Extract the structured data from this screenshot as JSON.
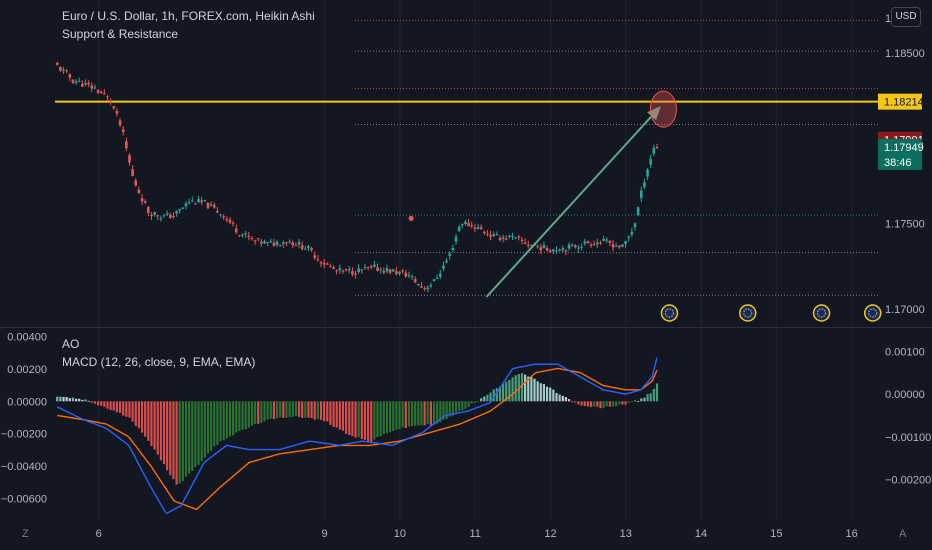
{
  "header": {
    "symbol_line": "Euro / U.S. Dollar, 1h, FOREX.com, Heikin Ashi",
    "indicator_line": "Support & Resistance",
    "currency_button": "USD"
  },
  "lower_pane": {
    "ao_label": "AO",
    "macd_label": "MACD (12, 26, close, 9, EMA, EMA)"
  },
  "corner_left": "Z",
  "corner_right": "A",
  "colors": {
    "background": "#131722",
    "up": "#26a69a",
    "down": "#ef5350",
    "resistance": "#f5c518",
    "macd": "#2962ff",
    "signal": "#ff6d00",
    "arrow": "#5fa88c"
  },
  "chart_data": [
    {
      "type": "candlestick",
      "title": "Euro / U.S. Dollar, 1h, FOREX.com, Heikin Ashi",
      "ylim": [
        1.169,
        1.1878
      ],
      "y_ticks": [
        "1.17000",
        "1.17500",
        "1.18500"
      ],
      "y_top_tick_partial": "1.1",
      "x_ticks": [
        "6",
        "9",
        "10",
        "11",
        "12",
        "13",
        "14",
        "15",
        "16"
      ],
      "x_range": [
        5.42,
        16.35
      ],
      "price_labels": [
        {
          "value": 1.18214,
          "text": "1.18214",
          "color": "#f5c518",
          "kind": "resistance"
        },
        {
          "value": 1.17991,
          "text": "1.17991",
          "color": "#8b1a1a",
          "kind": "level"
        },
        {
          "value": 1.17949,
          "text": "1.17949",
          "sub": "38:46",
          "color": "#0b6e5f",
          "kind": "last_price"
        }
      ],
      "horizontal_lines": [
        {
          "value": 1.18214,
          "style": "solid",
          "color": "#f5c518"
        },
        {
          "value": 1.1869,
          "style": "dotted",
          "color": "#ef5350"
        },
        {
          "value": 1.1851,
          "style": "dotted",
          "color": "#9598a1"
        },
        {
          "value": 1.1829,
          "style": "dotted",
          "color": "#ef5350"
        },
        {
          "value": 1.1808,
          "style": "dotted",
          "color": "#9598a1"
        },
        {
          "value": 1.1755,
          "style": "dotted",
          "color": "#26a69a"
        },
        {
          "value": 1.1733,
          "style": "dotted",
          "color": "#9598a1"
        },
        {
          "value": 1.1708,
          "style": "dotted",
          "color": "#9598a1"
        }
      ],
      "keypoints": [
        [
          5.45,
          1.1844
        ],
        [
          5.7,
          1.1834
        ],
        [
          6.0,
          1.1829
        ],
        [
          6.2,
          1.1822
        ],
        [
          6.35,
          1.1805
        ],
        [
          6.5,
          1.1776
        ],
        [
          6.7,
          1.1757
        ],
        [
          6.9,
          1.1754
        ],
        [
          7.05,
          1.1755
        ],
        [
          7.25,
          1.1763
        ],
        [
          7.45,
          1.1762
        ],
        [
          7.7,
          1.1755
        ],
        [
          7.9,
          1.1745
        ],
        [
          8.1,
          1.174
        ],
        [
          8.3,
          1.1738
        ],
        [
          8.55,
          1.174
        ],
        [
          8.8,
          1.1736
        ],
        [
          9.0,
          1.1728
        ],
        [
          9.2,
          1.1722
        ],
        [
          9.45,
          1.1722
        ],
        [
          9.7,
          1.1724
        ],
        [
          9.95,
          1.1722
        ],
        [
          10.15,
          1.172
        ],
        [
          10.35,
          1.1712
        ],
        [
          10.5,
          1.1716
        ],
        [
          10.7,
          1.1731
        ],
        [
          10.85,
          1.1751
        ],
        [
          11.05,
          1.1748
        ],
        [
          11.3,
          1.1742
        ],
        [
          11.5,
          1.1742
        ],
        [
          11.75,
          1.1738
        ],
        [
          12.0,
          1.1735
        ],
        [
          12.3,
          1.1736
        ],
        [
          12.55,
          1.1739
        ],
        [
          12.8,
          1.1739
        ],
        [
          13.0,
          1.1736
        ],
        [
          13.15,
          1.1748
        ],
        [
          13.3,
          1.1778
        ],
        [
          13.42,
          1.1795
        ]
      ],
      "markers": [
        {
          "type": "dot",
          "x": 10.15,
          "y": 1.1753,
          "color": "#ef5350"
        }
      ],
      "annotations": [
        {
          "type": "arrow",
          "from": [
            11.15,
            1.1707
          ],
          "to": [
            13.45,
            1.1818
          ]
        },
        {
          "type": "ellipse",
          "x": 13.5,
          "y": 1.1817
        }
      ],
      "events": [
        13.58,
        14.62,
        15.6,
        16.28
      ]
    },
    {
      "type": "histogram+line",
      "series": [
        {
          "name": "AO"
        },
        {
          "name": "MACD (12, 26, close, 9, EMA, EMA)"
        }
      ],
      "y_ticks_left": [
        "0.00400",
        "0.00200",
        "0.00000",
        "−0.00200",
        "−0.00400",
        "−0.00600"
      ],
      "y_ticks_right": [
        "0.00100",
        "0.00000",
        "−0.00100",
        "−0.00200"
      ],
      "ylim_left": [
        -0.0072,
        0.0044
      ],
      "ylim_right": [
        -0.0029,
        0.0015
      ],
      "macd_keypoints": [
        [
          5.45,
          -0.0003
        ],
        [
          5.8,
          -0.0006
        ],
        [
          6.1,
          -0.0008
        ],
        [
          6.4,
          -0.0012
        ],
        [
          6.7,
          -0.0022
        ],
        [
          6.9,
          -0.0028
        ],
        [
          7.1,
          -0.0026
        ],
        [
          7.4,
          -0.0016
        ],
        [
          7.7,
          -0.0012
        ],
        [
          8.0,
          -0.0013
        ],
        [
          8.4,
          -0.0013
        ],
        [
          8.8,
          -0.0011
        ],
        [
          9.2,
          -0.0012
        ],
        [
          9.5,
          -0.0011
        ],
        [
          9.9,
          -0.0012
        ],
        [
          10.3,
          -0.0009
        ],
        [
          10.6,
          -0.0005
        ],
        [
          10.9,
          -0.0004
        ],
        [
          11.2,
          -0.0002
        ],
        [
          11.5,
          0.0006
        ],
        [
          11.8,
          0.0007
        ],
        [
          12.1,
          0.0007
        ],
        [
          12.4,
          0.0004
        ],
        [
          12.7,
          0.0001
        ],
        [
          13.0,
          0.0
        ],
        [
          13.2,
          0.0001
        ],
        [
          13.35,
          0.0004
        ],
        [
          13.45,
          0.0011
        ]
      ],
      "signal_keypoints": [
        [
          5.45,
          -0.0005
        ],
        [
          5.8,
          -0.0006
        ],
        [
          6.1,
          -0.0007
        ],
        [
          6.4,
          -0.001
        ],
        [
          6.7,
          -0.0017
        ],
        [
          7.0,
          -0.0025
        ],
        [
          7.3,
          -0.0027
        ],
        [
          7.6,
          -0.0022
        ],
        [
          8.0,
          -0.0016
        ],
        [
          8.4,
          -0.0014
        ],
        [
          8.8,
          -0.0013
        ],
        [
          9.2,
          -0.0012
        ],
        [
          9.6,
          -0.0012
        ],
        [
          10.0,
          -0.0011
        ],
        [
          10.4,
          -0.0009
        ],
        [
          10.8,
          -0.0007
        ],
        [
          11.2,
          -0.0004
        ],
        [
          11.5,
          0.0
        ],
        [
          11.8,
          0.0005
        ],
        [
          12.1,
          0.0006
        ],
        [
          12.4,
          0.0005
        ],
        [
          12.7,
          0.0002
        ],
        [
          13.0,
          0.0001
        ],
        [
          13.2,
          0.0001
        ],
        [
          13.35,
          0.0003
        ],
        [
          13.45,
          0.0007
        ]
      ],
      "ao_keypoints": [
        [
          5.45,
          0.0003
        ],
        [
          5.8,
          0.0001
        ],
        [
          6.1,
          -0.0004
        ],
        [
          6.4,
          -0.001
        ],
        [
          6.6,
          -0.002
        ],
        [
          6.85,
          -0.0038
        ],
        [
          7.05,
          -0.0052
        ],
        [
          7.3,
          -0.004
        ],
        [
          7.6,
          -0.0025
        ],
        [
          7.9,
          -0.0018
        ],
        [
          8.2,
          -0.0012
        ],
        [
          8.6,
          -0.0009
        ],
        [
          9.0,
          -0.0012
        ],
        [
          9.3,
          -0.002
        ],
        [
          9.6,
          -0.0025
        ],
        [
          9.9,
          -0.0018
        ],
        [
          10.2,
          -0.0015
        ],
        [
          10.5,
          -0.0014
        ],
        [
          10.8,
          -0.0006
        ],
        [
          11.1,
          0.0002
        ],
        [
          11.4,
          0.0012
        ],
        [
          11.6,
          0.0018
        ],
        [
          11.85,
          0.0012
        ],
        [
          12.1,
          0.0005
        ],
        [
          12.4,
          -0.0003
        ],
        [
          12.7,
          -0.0004
        ],
        [
          12.95,
          -0.0002
        ],
        [
          13.2,
          0.0001
        ],
        [
          13.35,
          0.0006
        ],
        [
          13.45,
          0.0014
        ]
      ]
    }
  ]
}
